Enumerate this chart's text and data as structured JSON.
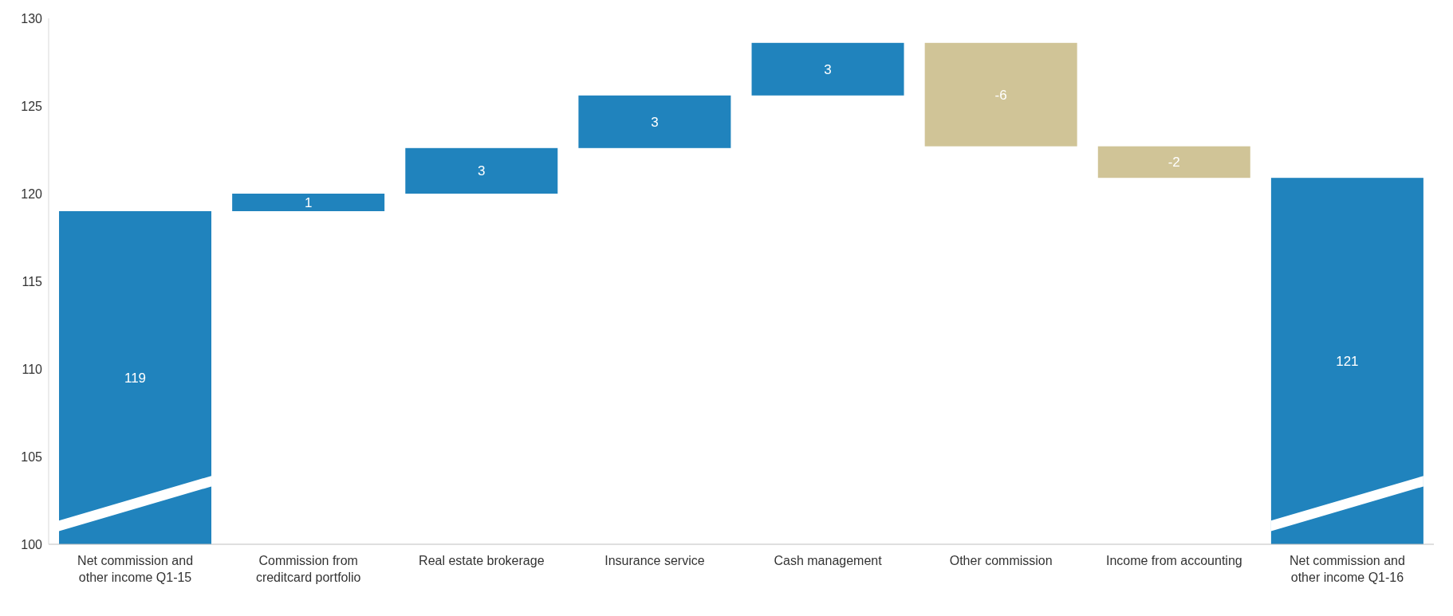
{
  "chart_data": {
    "type": "bar",
    "categories": [
      "Net commission and other income Q1-15",
      "Commission from creditcard portfolio",
      "Real estate brokerage",
      "Insurance service",
      "Cash management",
      "Other commission",
      "Income from accounting",
      "Net commission and other income Q1-16"
    ],
    "values": [
      119,
      1,
      2.6,
      3,
      3,
      -5.9,
      -1.8,
      120.9
    ],
    "base": [
      null,
      119,
      120,
      122.6,
      125.6,
      128.6,
      122.7,
      null
    ],
    "value_labels": [
      "119",
      "1",
      "3",
      "3",
      "3",
      "-6",
      "-2",
      "121"
    ],
    "colors": [
      "#2083bd",
      "#2083bd",
      "#2083bd",
      "#2083bd",
      "#2083bd",
      "#d0c497",
      "#d0c497",
      "#2083bd"
    ],
    "ylim": [
      100,
      130
    ],
    "yticks": [
      100,
      105,
      110,
      115,
      120,
      125,
      130
    ],
    "grid": false,
    "legend": false
  }
}
